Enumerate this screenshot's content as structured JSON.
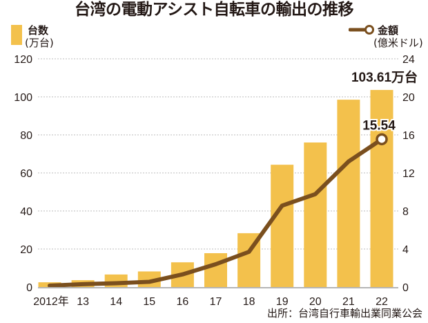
{
  "title": "台湾の電動アシスト自転車の輸出の推移",
  "legend": {
    "bars_label": "台数",
    "bars_unit": "(万台)",
    "line_label": "金額",
    "line_unit": "(億米ドル)"
  },
  "source": "出所：台湾自行車輸出業同業公会",
  "colors": {
    "bar": "#f3c14c",
    "line": "#7a4f1e",
    "grid": "#bbbbbb",
    "axis": "#b5b5b5",
    "text": "#231815"
  },
  "chart_data": {
    "type": "bar",
    "title": "台湾の電動アシスト自転車の輸出の推移",
    "categories": [
      "2012年",
      "13",
      "14",
      "15",
      "16",
      "17",
      "18",
      "19",
      "20",
      "21",
      "22"
    ],
    "series": [
      {
        "name": "台数（万台）",
        "type": "bar",
        "axis": "left",
        "values": [
          2.5,
          3.6,
          6.6,
          8.2,
          13.0,
          17.8,
          28.3,
          64.3,
          76.0,
          98.5,
          103.61
        ]
      },
      {
        "name": "金額（億米ドル）",
        "type": "line",
        "axis": "right",
        "values": [
          0.15,
          0.3,
          0.4,
          0.55,
          1.33,
          2.4,
          3.7,
          8.56,
          9.77,
          13.2,
          15.54
        ]
      }
    ],
    "y_left": {
      "label": "台数（万台）",
      "ylim": [
        0,
        120
      ],
      "ticks": [
        0,
        20,
        40,
        60,
        80,
        100,
        120
      ]
    },
    "y_right": {
      "label": "金額（億米ドル）",
      "ylim": [
        0,
        24
      ],
      "ticks": [
        0,
        4,
        8,
        12,
        16,
        20,
        24
      ]
    },
    "grid": true,
    "legend": "top-left (bars), top-right (line)",
    "annotations": [
      {
        "text": "103.61万台",
        "target": "bars",
        "category": "22"
      },
      {
        "text": "15.54",
        "target": "line",
        "category": "22"
      }
    ]
  }
}
